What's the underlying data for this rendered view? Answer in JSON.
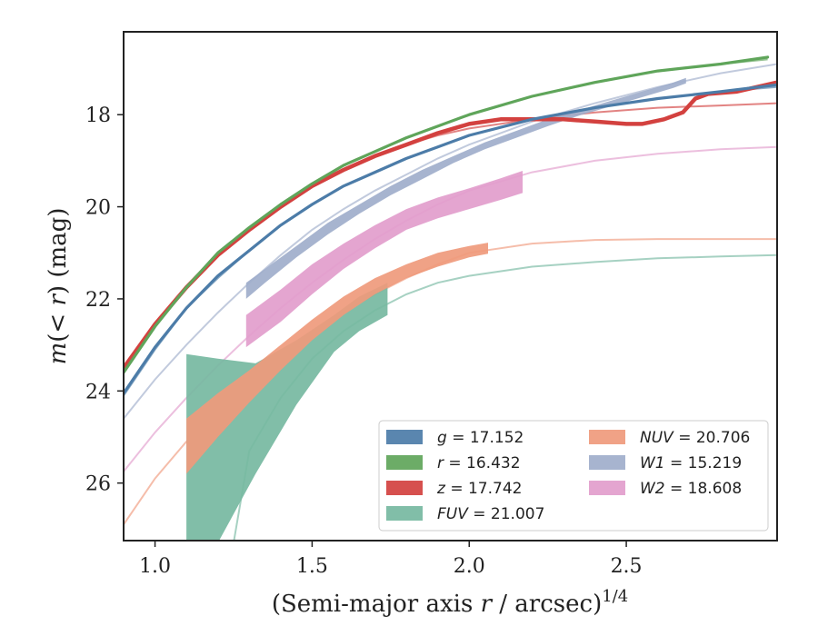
{
  "chart_data": {
    "type": "line",
    "xlabel": "(Semi-major axis r / arcsec)^1/4",
    "ylabel": "m(< r) (mag)",
    "xlim": [
      0.9,
      2.98
    ],
    "ylim": [
      27.25,
      16.2
    ],
    "y_inverted": true,
    "x_ticks": [
      1.0,
      1.5,
      2.0,
      2.5
    ],
    "x_tick_labels": [
      "1.0",
      "1.5",
      "2.0",
      "2.5"
    ],
    "y_ticks": [
      18,
      20,
      22,
      24,
      26
    ],
    "y_tick_labels": [
      "18",
      "20",
      "22",
      "24",
      "26"
    ],
    "grid": false,
    "legend_position": "lower-right",
    "series": [
      {
        "name": "g",
        "legend_label": "g = 17.152",
        "color": "#4c7ca8",
        "model": {
          "x": [
            0.9,
            1.0,
            1.1,
            1.2,
            1.3,
            1.4,
            1.5,
            1.6,
            1.7,
            1.8,
            1.9,
            2.0,
            2.2,
            2.4,
            2.6,
            2.8,
            2.98
          ],
          "y": [
            24.1,
            23.1,
            22.2,
            21.55,
            20.95,
            20.4,
            19.95,
            19.55,
            19.25,
            18.95,
            18.7,
            18.45,
            18.1,
            17.85,
            17.65,
            17.5,
            17.4
          ]
        },
        "data": {
          "x": [
            0.9,
            1.0,
            1.1,
            1.2,
            1.3,
            1.4,
            1.5,
            1.6,
            1.7,
            1.8,
            1.9,
            2.0,
            2.2,
            2.4,
            2.6,
            2.8,
            2.98
          ],
          "y": [
            24.05,
            23.05,
            22.2,
            21.5,
            20.95,
            20.4,
            19.95,
            19.55,
            19.25,
            18.95,
            18.7,
            18.45,
            18.1,
            17.85,
            17.65,
            17.5,
            17.35
          ],
          "err": 0.05
        }
      },
      {
        "name": "r",
        "legend_label": "r = 16.432",
        "color": "#5fa55a",
        "model": {
          "x": [
            0.9,
            1.0,
            1.1,
            1.2,
            1.3,
            1.4,
            1.5,
            1.6,
            1.7,
            1.8,
            1.9,
            2.0,
            2.2,
            2.4,
            2.6,
            2.8,
            2.95
          ],
          "y": [
            23.6,
            22.6,
            21.75,
            21.0,
            20.45,
            19.95,
            19.5,
            19.1,
            18.8,
            18.5,
            18.25,
            18.0,
            17.6,
            17.3,
            17.05,
            16.9,
            16.8
          ]
        },
        "data": {
          "x": [
            0.9,
            1.0,
            1.1,
            1.2,
            1.3,
            1.4,
            1.5,
            1.6,
            1.7,
            1.8,
            1.9,
            2.0,
            2.2,
            2.4,
            2.6,
            2.8,
            2.95
          ],
          "y": [
            23.6,
            22.6,
            21.75,
            21.0,
            20.45,
            19.95,
            19.5,
            19.1,
            18.8,
            18.5,
            18.25,
            18.0,
            17.6,
            17.3,
            17.05,
            16.9,
            16.75
          ],
          "err": 0.04
        }
      },
      {
        "name": "z",
        "legend_label": "z = 17.742",
        "color": "#d3413f",
        "model": {
          "x": [
            0.9,
            1.0,
            1.1,
            1.2,
            1.3,
            1.4,
            1.5,
            1.6,
            1.7,
            1.8,
            1.9,
            2.0,
            2.2,
            2.4,
            2.6,
            2.8,
            2.98
          ],
          "y": [
            23.5,
            22.55,
            21.75,
            21.05,
            20.5,
            20.0,
            19.55,
            19.2,
            18.9,
            18.65,
            18.45,
            18.3,
            18.1,
            17.95,
            17.85,
            17.8,
            17.75
          ]
        },
        "data": {
          "x": [
            0.9,
            1.0,
            1.1,
            1.2,
            1.3,
            1.4,
            1.5,
            1.6,
            1.7,
            1.8,
            1.9,
            2.0,
            2.1,
            2.2,
            2.3,
            2.4,
            2.5,
            2.55,
            2.62,
            2.68,
            2.72,
            2.76,
            2.85,
            2.98
          ],
          "y": [
            23.5,
            22.55,
            21.75,
            21.05,
            20.5,
            20.0,
            19.55,
            19.2,
            18.9,
            18.65,
            18.4,
            18.2,
            18.1,
            18.1,
            18.1,
            18.15,
            18.2,
            18.2,
            18.1,
            17.95,
            17.65,
            17.55,
            17.5,
            17.3
          ],
          "err": 0.08
        }
      },
      {
        "name": "FUV",
        "legend_label": "FUV = 21.007",
        "color": "#76b9a1",
        "model": {
          "x": [
            1.25,
            1.3,
            1.4,
            1.5,
            1.6,
            1.7,
            1.8,
            1.9,
            2.0,
            2.2,
            2.4,
            2.6,
            2.8,
            2.98
          ],
          "y": [
            27.3,
            25.3,
            24.15,
            23.3,
            22.7,
            22.25,
            21.9,
            21.65,
            21.5,
            21.3,
            21.2,
            21.12,
            21.08,
            21.05
          ]
        },
        "data": {
          "x": [
            1.1,
            1.2,
            1.32,
            1.45,
            1.57,
            1.65,
            1.74
          ],
          "y_upper": [
            23.2,
            23.3,
            23.4,
            22.9,
            22.35,
            21.95,
            21.65
          ],
          "y_lower": [
            27.3,
            27.3,
            25.8,
            24.3,
            23.15,
            22.7,
            22.35
          ]
        }
      },
      {
        "name": "NUV",
        "legend_label": "NUV = 20.706",
        "color": "#ef9a7c",
        "model": {
          "x": [
            0.9,
            1.0,
            1.1,
            1.2,
            1.3,
            1.4,
            1.5,
            1.6,
            1.7,
            1.8,
            1.9,
            2.0,
            2.2,
            2.4,
            2.6,
            2.8,
            2.98
          ],
          "y": [
            26.9,
            25.9,
            25.1,
            24.4,
            23.8,
            23.25,
            22.75,
            22.3,
            21.9,
            21.55,
            21.25,
            21.0,
            20.8,
            20.72,
            20.7,
            20.7,
            20.7
          ]
        },
        "data": {
          "x": [
            1.1,
            1.2,
            1.3,
            1.4,
            1.5,
            1.6,
            1.7,
            1.8,
            1.9,
            2.0,
            2.06
          ],
          "y_upper": [
            24.6,
            24.05,
            23.55,
            23.0,
            22.45,
            21.95,
            21.55,
            21.25,
            21.0,
            20.85,
            20.78
          ],
          "y_lower": [
            25.8,
            25.0,
            24.25,
            23.55,
            22.9,
            22.35,
            21.9,
            21.55,
            21.3,
            21.1,
            21.02
          ]
        }
      },
      {
        "name": "W1",
        "legend_label": "W1 = 15.219",
        "color": "#a0aecb",
        "model": {
          "x": [
            0.9,
            1.0,
            1.1,
            1.2,
            1.3,
            1.4,
            1.5,
            1.6,
            1.7,
            1.8,
            1.9,
            2.0,
            2.2,
            2.4,
            2.6,
            2.8,
            2.98
          ],
          "y": [
            24.6,
            23.75,
            23.0,
            22.3,
            21.65,
            21.05,
            20.5,
            20.05,
            19.65,
            19.3,
            18.95,
            18.65,
            18.15,
            17.75,
            17.4,
            17.1,
            16.9
          ]
        },
        "data": {
          "x": [
            1.29,
            1.35,
            1.45,
            1.55,
            1.65,
            1.75,
            1.85,
            1.95,
            2.05,
            2.15,
            2.25,
            2.35,
            2.45,
            2.55,
            2.65,
            2.69
          ],
          "y_upper": [
            21.65,
            21.35,
            20.85,
            20.35,
            19.95,
            19.55,
            19.2,
            18.9,
            18.6,
            18.35,
            18.1,
            17.9,
            17.7,
            17.5,
            17.3,
            17.2
          ],
          "y_lower": [
            22.0,
            21.65,
            21.1,
            20.6,
            20.15,
            19.75,
            19.4,
            19.05,
            18.75,
            18.5,
            18.25,
            18.02,
            17.82,
            17.62,
            17.42,
            17.32
          ]
        }
      },
      {
        "name": "W2",
        "legend_label": "W2 = 18.608",
        "color": "#e29dcc",
        "model": {
          "x": [
            0.9,
            1.0,
            1.1,
            1.2,
            1.3,
            1.4,
            1.5,
            1.6,
            1.7,
            1.8,
            1.9,
            2.0,
            2.2,
            2.4,
            2.6,
            2.8,
            2.98
          ],
          "y": [
            25.75,
            24.9,
            24.15,
            23.45,
            22.8,
            22.2,
            21.65,
            21.15,
            20.7,
            20.3,
            19.95,
            19.65,
            19.25,
            19.0,
            18.85,
            18.75,
            18.7
          ]
        },
        "data": {
          "x": [
            1.29,
            1.4,
            1.5,
            1.6,
            1.7,
            1.8,
            1.9,
            2.0,
            2.1,
            2.17
          ],
          "y_upper": [
            22.35,
            21.8,
            21.25,
            20.8,
            20.4,
            20.05,
            19.8,
            19.6,
            19.38,
            19.22
          ],
          "y_lower": [
            23.05,
            22.5,
            21.9,
            21.35,
            20.9,
            20.5,
            20.25,
            20.05,
            19.85,
            19.7
          ]
        }
      }
    ]
  }
}
